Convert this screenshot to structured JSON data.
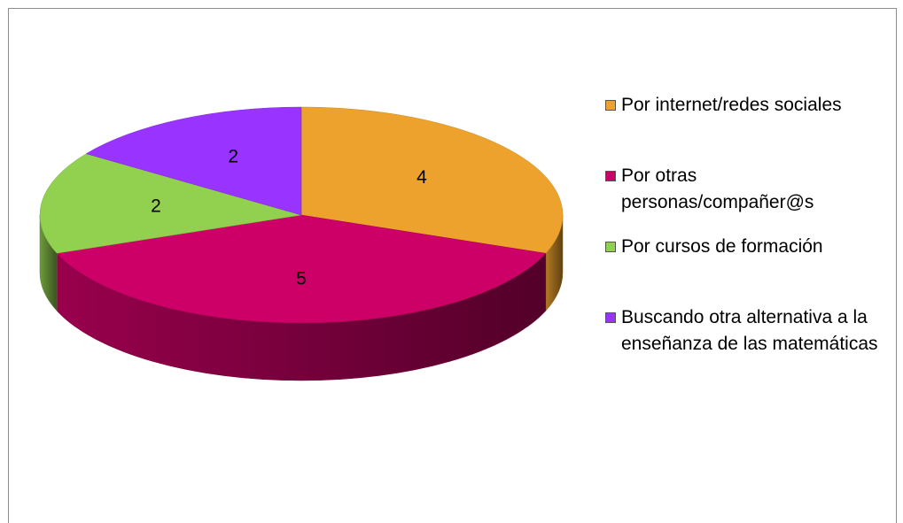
{
  "chart_data": {
    "type": "pie",
    "categories": [
      "Por internet/redes sociales",
      "Por otras personas/compañer@s",
      "Por cursos de formación",
      "Buscando otra alternativa a la enseñanza de las matemáticas"
    ],
    "values": [
      4,
      5,
      2,
      2
    ],
    "colors": [
      "#eda22e",
      "#cc0066",
      "#92d050",
      "#9933ff"
    ],
    "legend": "right"
  }
}
